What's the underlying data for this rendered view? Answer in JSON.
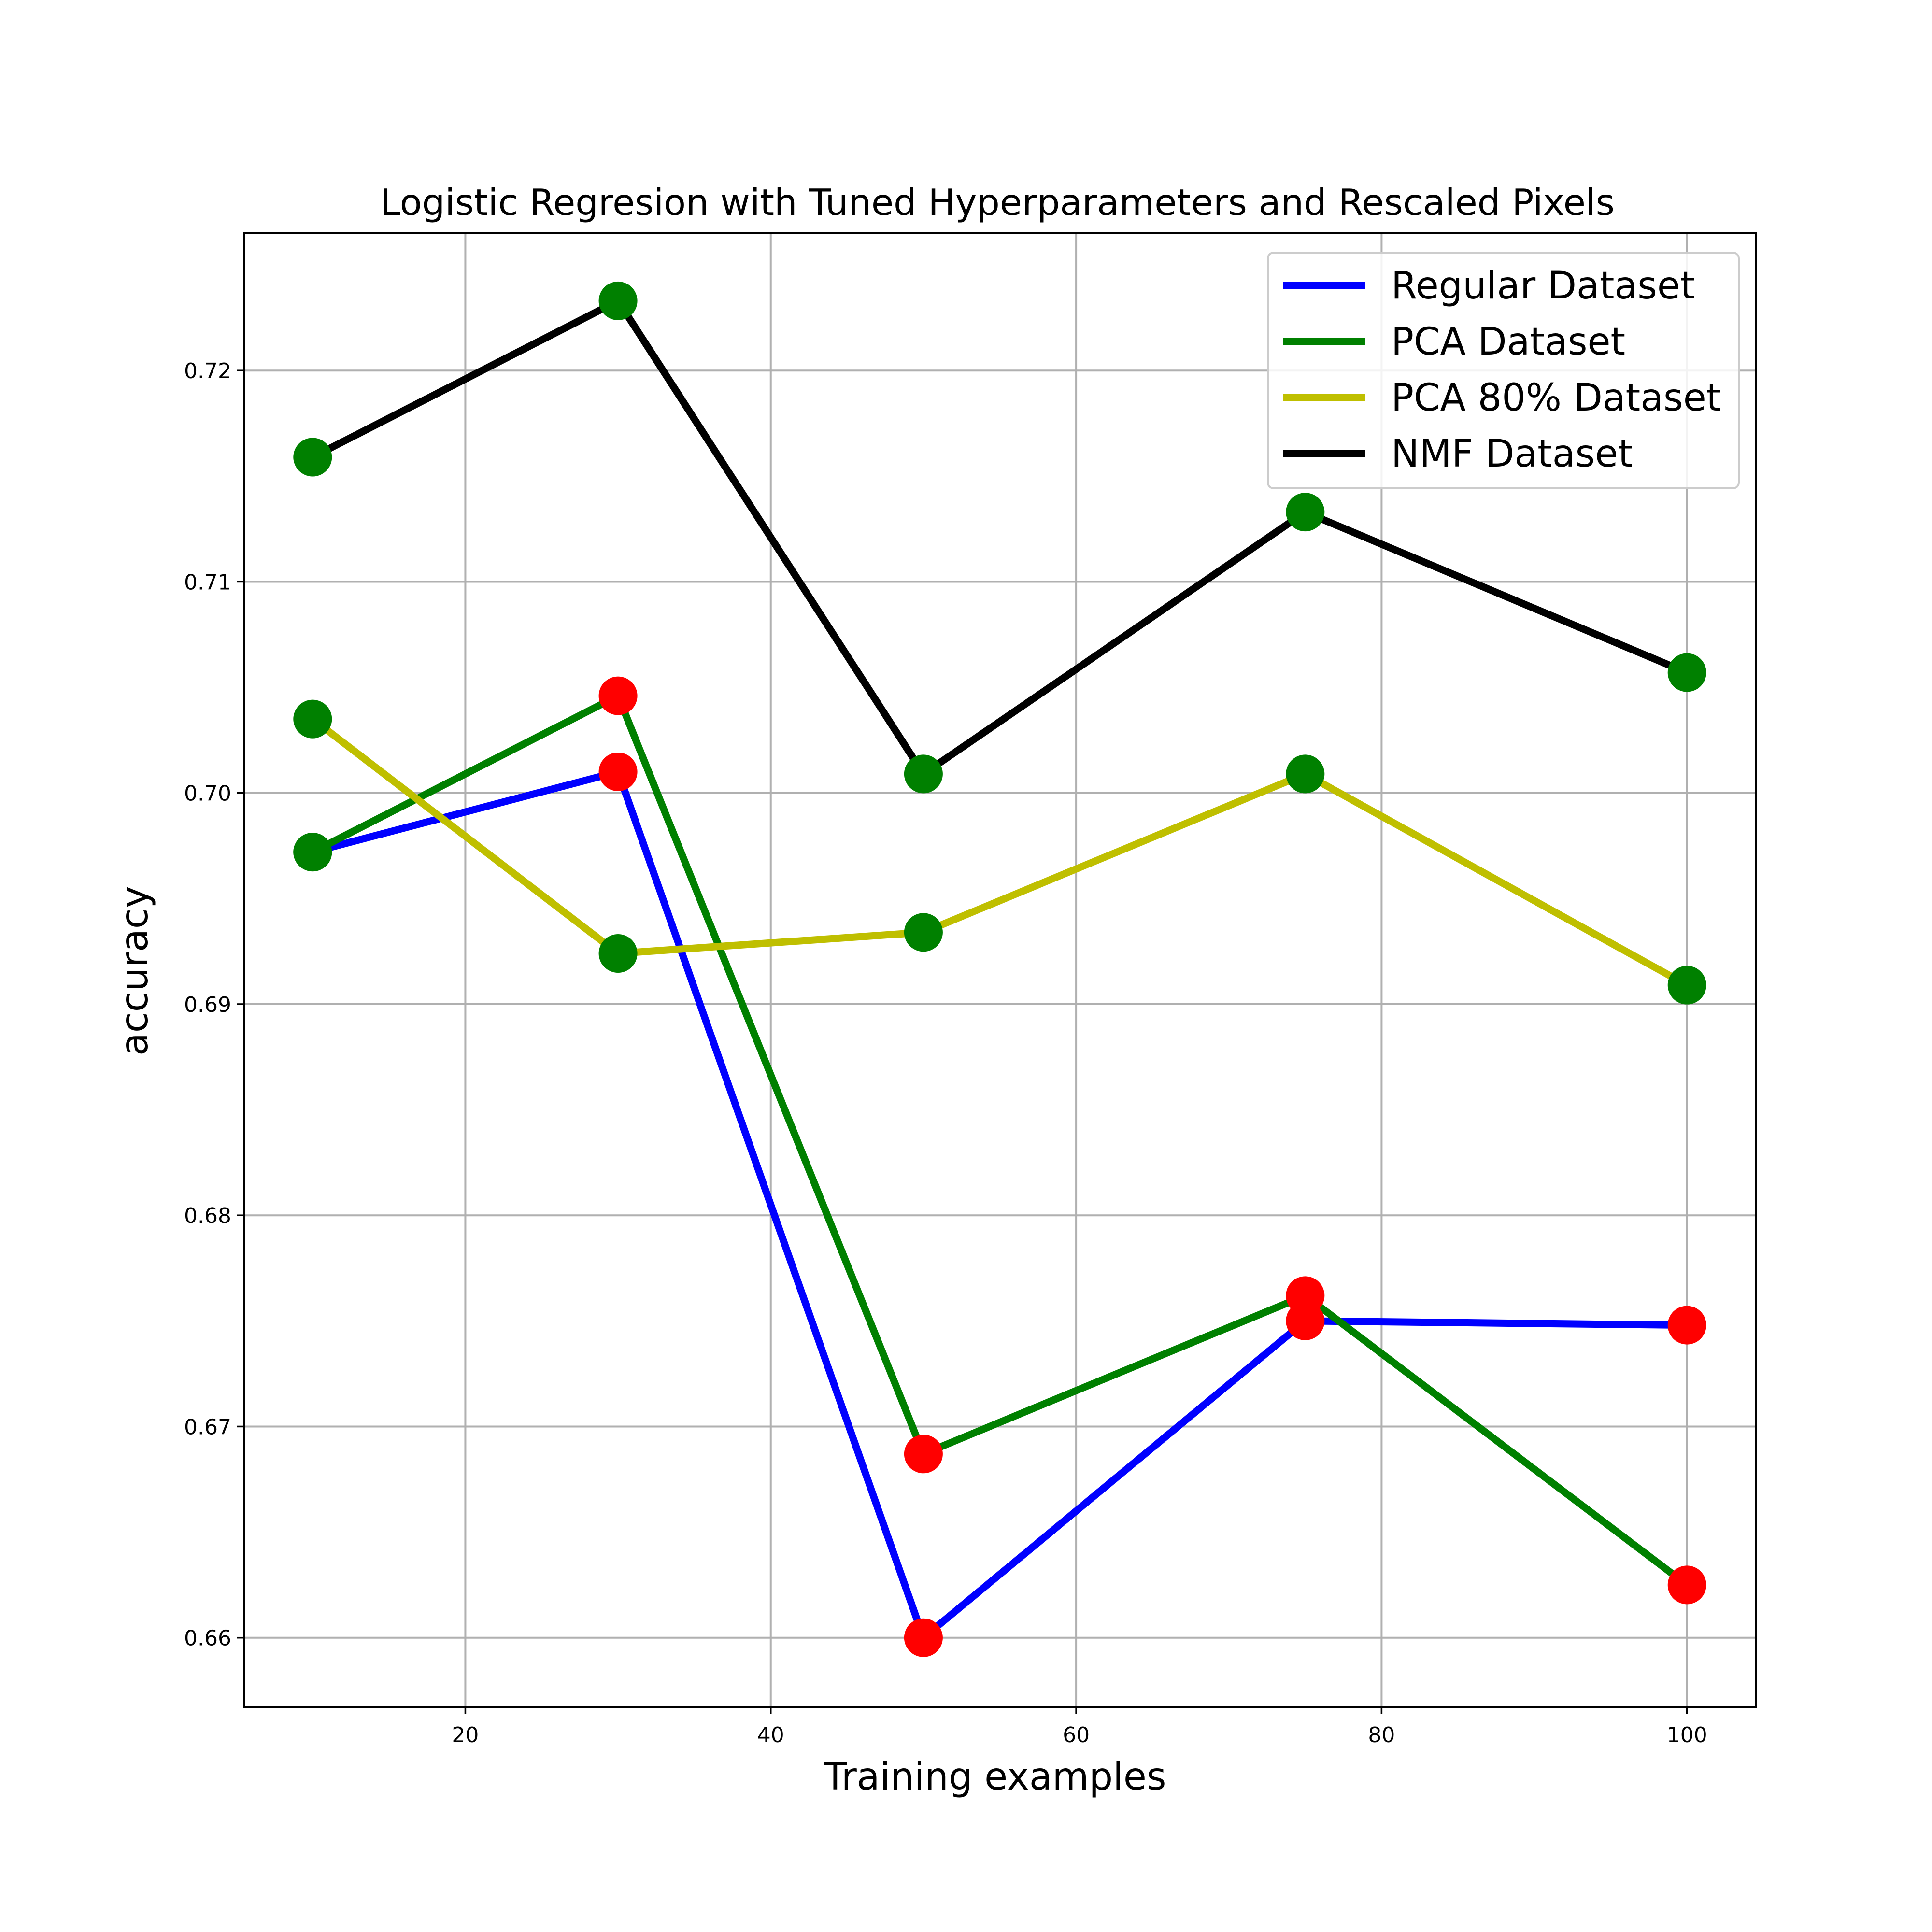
{
  "chart_data": {
    "type": "line",
    "title": "Logistic Regresion with Tuned Hyperparameters and Rescaled Pixels",
    "xlabel": "Training examples",
    "ylabel": "accuracy",
    "x": [
      10,
      30,
      50,
      75,
      100
    ],
    "xlim": [
      5.5,
      104.5
    ],
    "ylim": [
      0.6567,
      0.7265
    ],
    "xticks": [
      20,
      40,
      60,
      80,
      100
    ],
    "xtick_labels": [
      "20",
      "40",
      "60",
      "80",
      "100"
    ],
    "yticks": [
      0.66,
      0.67,
      0.68,
      0.69,
      0.7,
      0.71,
      0.72
    ],
    "ytick_labels": [
      "0.66",
      "0.67",
      "0.68",
      "0.69",
      "0.70",
      "0.71",
      "0.72"
    ],
    "grid": true,
    "legend_position": "top-right",
    "series": [
      {
        "name": "Regular Dataset",
        "color": "#0000ff",
        "values": [
          0.6972,
          0.701,
          0.66,
          0.675,
          0.6748
        ],
        "marker_colors": [
          "#008000",
          "#ff0000",
          "#ff0000",
          "#ff0000",
          "#ff0000"
        ]
      },
      {
        "name": "PCA Dataset",
        "color": "#008000",
        "values": [
          0.6972,
          0.7046,
          0.6687,
          0.6762,
          0.6625
        ],
        "marker_colors": [
          "#008000",
          "#ff0000",
          "#ff0000",
          "#ff0000",
          "#ff0000"
        ]
      },
      {
        "name": "PCA 80% Dataset",
        "color": "#bfbf00",
        "values": [
          0.7035,
          0.6924,
          0.6934,
          0.7009,
          0.6909
        ],
        "marker_colors": [
          "#008000",
          "#008000",
          "#008000",
          "#008000",
          "#008000"
        ]
      },
      {
        "name": "NMF Dataset",
        "color": "#000000",
        "values": [
          0.7159,
          0.7233,
          0.7009,
          0.7133,
          0.7057
        ],
        "marker_colors": [
          "#008000",
          "#008000",
          "#008000",
          "#008000",
          "#008000"
        ]
      }
    ]
  }
}
